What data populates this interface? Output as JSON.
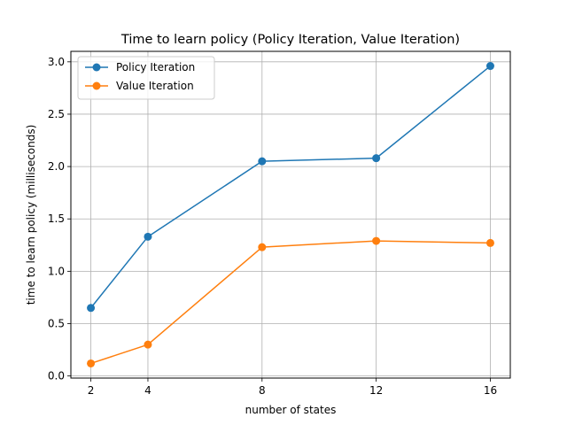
{
  "chart_data": {
    "type": "line",
    "title": "Time to learn policy (Policy Iteration, Value Iteration)",
    "xlabel": "number of states",
    "ylabel": "time to learn policy (milliseconds)",
    "x": [
      2,
      4,
      8,
      12,
      16
    ],
    "x_ticks": [
      "2",
      "4",
      "8",
      "12",
      "16"
    ],
    "y_ticks": [
      "0.0",
      "0.5",
      "1.0",
      "1.5",
      "2.0",
      "2.5",
      "3.0"
    ],
    "xlim": [
      1.3,
      16.7
    ],
    "ylim": [
      -0.02,
      3.1
    ],
    "grid": true,
    "legend_position": "top-left",
    "series": [
      {
        "name": "Policy Iteration",
        "color": "#1f77b4",
        "marker": "circle",
        "values": [
          0.65,
          1.33,
          2.05,
          2.08,
          2.96
        ]
      },
      {
        "name": "Value Iteration",
        "color": "#ff7f0e",
        "marker": "circle",
        "values": [
          0.12,
          0.3,
          1.23,
          1.29,
          1.27
        ]
      }
    ]
  }
}
